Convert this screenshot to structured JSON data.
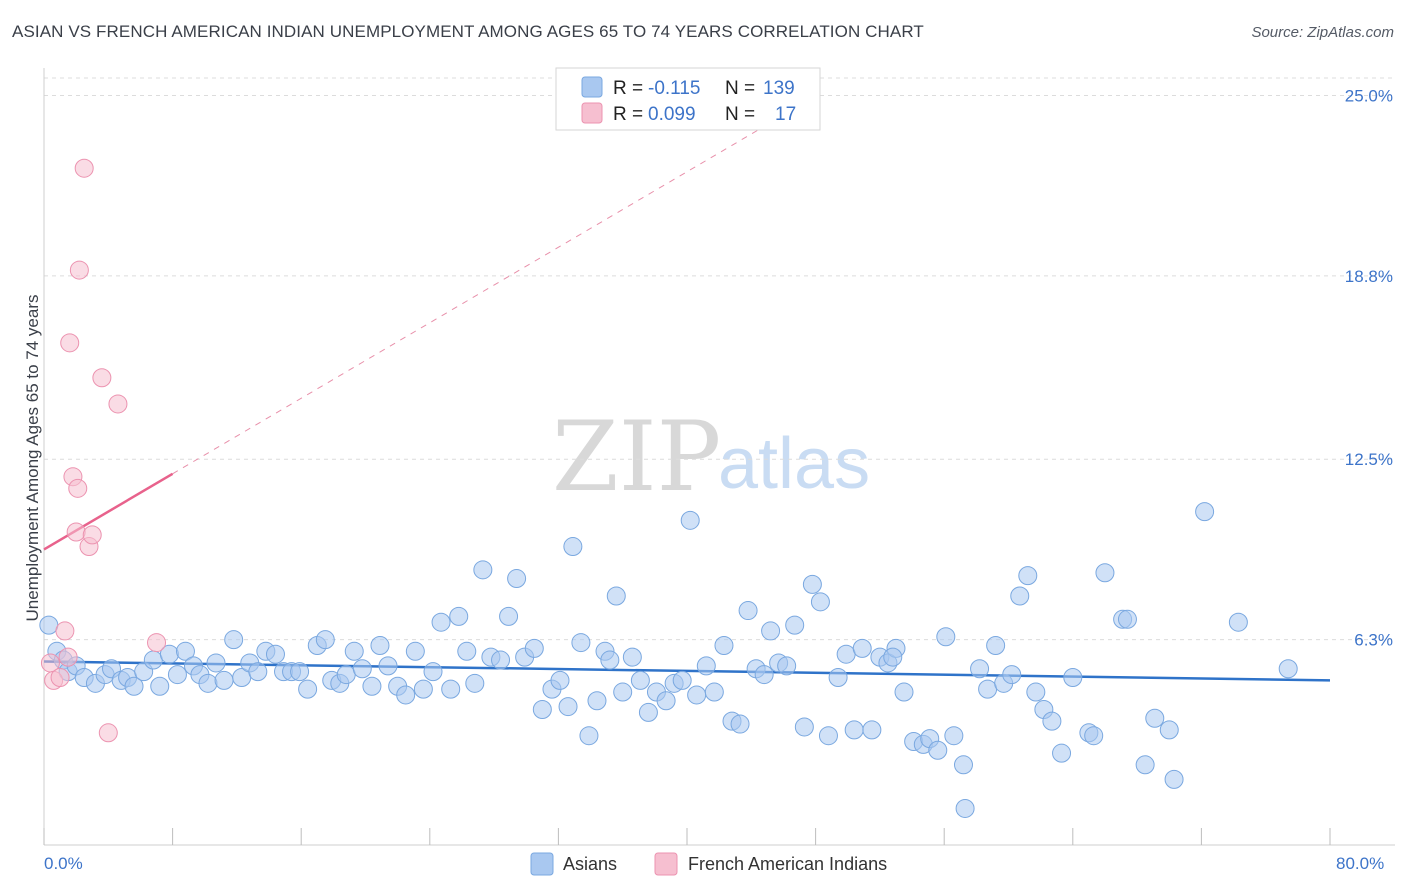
{
  "chart_data": {
    "type": "scatter",
    "title": "ASIAN VS FRENCH AMERICAN INDIAN UNEMPLOYMENT AMONG AGES 65 TO 74 YEARS CORRELATION CHART",
    "source": "Source: ZipAtlas.com",
    "xlabel": "",
    "ylabel": "Unemployment Among Ages 65 to 74 years",
    "xlim": [
      0,
      80
    ],
    "ylim": [
      0,
      25.6
    ],
    "x_tick_labels": [
      "0.0%",
      "80.0%"
    ],
    "y_ticks": [
      6.3,
      12.5,
      18.8,
      25.0
    ],
    "y_tick_labels": [
      "6.3%",
      "12.5%",
      "18.8%",
      "25.0%"
    ],
    "watermark": {
      "zip": "ZIP",
      "atlas": "atlas"
    },
    "legend_stats": [
      {
        "r_label": "R =",
        "r_value": "-0.115",
        "n_label": "N =",
        "n_value": "139"
      },
      {
        "r_label": "R =",
        "r_value": "0.099",
        "n_label": "N =",
        "n_value": "17"
      }
    ],
    "series": [
      {
        "name": "Asians",
        "color": "#a9c8f0",
        "edge": "#7aa8e0",
        "trend": {
          "x": [
            0,
            80
          ],
          "y": [
            5.55,
            4.9
          ],
          "color": "#2f73c9"
        },
        "points": [
          [
            0.3,
            6.8
          ],
          [
            0.8,
            5.9
          ],
          [
            1.2,
            5.6
          ],
          [
            1.5,
            5.2
          ],
          [
            2.0,
            5.4
          ],
          [
            2.5,
            5.0
          ],
          [
            3.2,
            4.8
          ],
          [
            3.8,
            5.1
          ],
          [
            4.2,
            5.3
          ],
          [
            4.8,
            4.9
          ],
          [
            5.2,
            5.0
          ],
          [
            5.6,
            4.7
          ],
          [
            6.2,
            5.2
          ],
          [
            6.8,
            5.6
          ],
          [
            7.2,
            4.7
          ],
          [
            7.8,
            5.8
          ],
          [
            8.3,
            5.1
          ],
          [
            8.8,
            5.9
          ],
          [
            9.3,
            5.4
          ],
          [
            9.7,
            5.1
          ],
          [
            10.2,
            4.8
          ],
          [
            10.7,
            5.5
          ],
          [
            11.2,
            4.9
          ],
          [
            11.8,
            6.3
          ],
          [
            12.3,
            5.0
          ],
          [
            12.8,
            5.5
          ],
          [
            13.3,
            5.2
          ],
          [
            13.8,
            5.9
          ],
          [
            14.4,
            5.8
          ],
          [
            14.9,
            5.2
          ],
          [
            15.4,
            5.2
          ],
          [
            15.9,
            5.2
          ],
          [
            16.4,
            4.6
          ],
          [
            17.0,
            6.1
          ],
          [
            17.5,
            6.3
          ],
          [
            17.9,
            4.9
          ],
          [
            18.4,
            4.8
          ],
          [
            18.8,
            5.1
          ],
          [
            19.3,
            5.9
          ],
          [
            19.8,
            5.3
          ],
          [
            20.4,
            4.7
          ],
          [
            20.9,
            6.1
          ],
          [
            21.4,
            5.4
          ],
          [
            22.0,
            4.7
          ],
          [
            22.5,
            4.4
          ],
          [
            23.1,
            5.9
          ],
          [
            23.6,
            4.6
          ],
          [
            24.2,
            5.2
          ],
          [
            24.7,
            6.9
          ],
          [
            25.3,
            4.6
          ],
          [
            25.8,
            7.1
          ],
          [
            26.3,
            5.9
          ],
          [
            26.8,
            4.8
          ],
          [
            27.3,
            8.7
          ],
          [
            27.8,
            5.7
          ],
          [
            28.4,
            5.6
          ],
          [
            28.9,
            7.1
          ],
          [
            29.4,
            8.4
          ],
          [
            29.9,
            5.7
          ],
          [
            30.5,
            6.0
          ],
          [
            31.0,
            3.9
          ],
          [
            31.6,
            4.6
          ],
          [
            32.1,
            4.9
          ],
          [
            32.6,
            4.0
          ],
          [
            32.9,
            9.5
          ],
          [
            33.4,
            6.2
          ],
          [
            33.9,
            3.0
          ],
          [
            34.4,
            4.2
          ],
          [
            34.9,
            5.9
          ],
          [
            35.2,
            5.6
          ],
          [
            35.6,
            7.8
          ],
          [
            36.0,
            4.5
          ],
          [
            36.6,
            5.7
          ],
          [
            37.1,
            4.9
          ],
          [
            37.6,
            3.8
          ],
          [
            38.1,
            4.5
          ],
          [
            38.7,
            4.2
          ],
          [
            39.2,
            4.8
          ],
          [
            39.7,
            4.9
          ],
          [
            40.2,
            10.4
          ],
          [
            40.6,
            4.4
          ],
          [
            41.2,
            5.4
          ],
          [
            41.7,
            4.5
          ],
          [
            42.3,
            6.1
          ],
          [
            42.8,
            3.5
          ],
          [
            43.3,
            3.4
          ],
          [
            43.8,
            7.3
          ],
          [
            44.3,
            5.3
          ],
          [
            44.8,
            5.1
          ],
          [
            45.2,
            6.6
          ],
          [
            45.7,
            5.5
          ],
          [
            46.2,
            5.4
          ],
          [
            46.7,
            6.8
          ],
          [
            47.3,
            3.3
          ],
          [
            47.8,
            8.2
          ],
          [
            48.3,
            7.6
          ],
          [
            48.8,
            3.0
          ],
          [
            49.4,
            5.0
          ],
          [
            49.9,
            5.8
          ],
          [
            50.4,
            3.2
          ],
          [
            50.9,
            6.0
          ],
          [
            51.5,
            3.2
          ],
          [
            52.0,
            5.7
          ],
          [
            52.5,
            5.5
          ],
          [
            53.0,
            6.0
          ],
          [
            53.5,
            4.5
          ],
          [
            54.1,
            2.8
          ],
          [
            54.7,
            2.7
          ],
          [
            55.1,
            2.9
          ],
          [
            55.6,
            2.5
          ],
          [
            56.1,
            6.4
          ],
          [
            56.6,
            3.0
          ],
          [
            57.2,
            2.0
          ],
          [
            58.2,
            5.3
          ],
          [
            58.7,
            4.6
          ],
          [
            59.2,
            6.1
          ],
          [
            59.7,
            4.8
          ],
          [
            60.2,
            5.1
          ],
          [
            60.7,
            7.8
          ],
          [
            61.2,
            8.5
          ],
          [
            61.7,
            4.5
          ],
          [
            62.2,
            3.9
          ],
          [
            62.7,
            3.5
          ],
          [
            63.3,
            2.4
          ],
          [
            64.0,
            5.0
          ],
          [
            65.0,
            3.1
          ],
          [
            65.3,
            3.0
          ],
          [
            66.0,
            8.6
          ],
          [
            67.1,
            7.0
          ],
          [
            67.4,
            7.0
          ],
          [
            68.5,
            2.0
          ],
          [
            69.1,
            3.6
          ],
          [
            70.0,
            3.2
          ],
          [
            70.3,
            1.5
          ],
          [
            72.2,
            10.7
          ],
          [
            74.3,
            6.9
          ],
          [
            77.4,
            5.3
          ],
          [
            57.3,
            0.5
          ],
          [
            52.8,
            5.7
          ]
        ]
      },
      {
        "name": "French American Indians",
        "color": "#f6bfd0",
        "edge": "#ec93b0",
        "trend": {
          "x": [
            0,
            8
          ],
          "y": [
            9.4,
            12.0
          ],
          "color": "#e8628c"
        },
        "trend_dashed": {
          "x": [
            8,
            45
          ],
          "y": [
            12.0,
            24.0
          ],
          "color": "#e890aa"
        },
        "points": [
          [
            0.4,
            5.5
          ],
          [
            0.6,
            4.9
          ],
          [
            1.0,
            5.0
          ],
          [
            1.3,
            6.6
          ],
          [
            1.5,
            5.7
          ],
          [
            1.8,
            11.9
          ],
          [
            2.1,
            11.5
          ],
          [
            2.0,
            10.0
          ],
          [
            1.6,
            16.5
          ],
          [
            2.2,
            19.0
          ],
          [
            2.5,
            22.5
          ],
          [
            2.8,
            9.5
          ],
          [
            3.0,
            9.9
          ],
          [
            3.6,
            15.3
          ],
          [
            4.0,
            3.1
          ],
          [
            4.6,
            14.4
          ],
          [
            7.0,
            6.2
          ]
        ]
      }
    ]
  }
}
